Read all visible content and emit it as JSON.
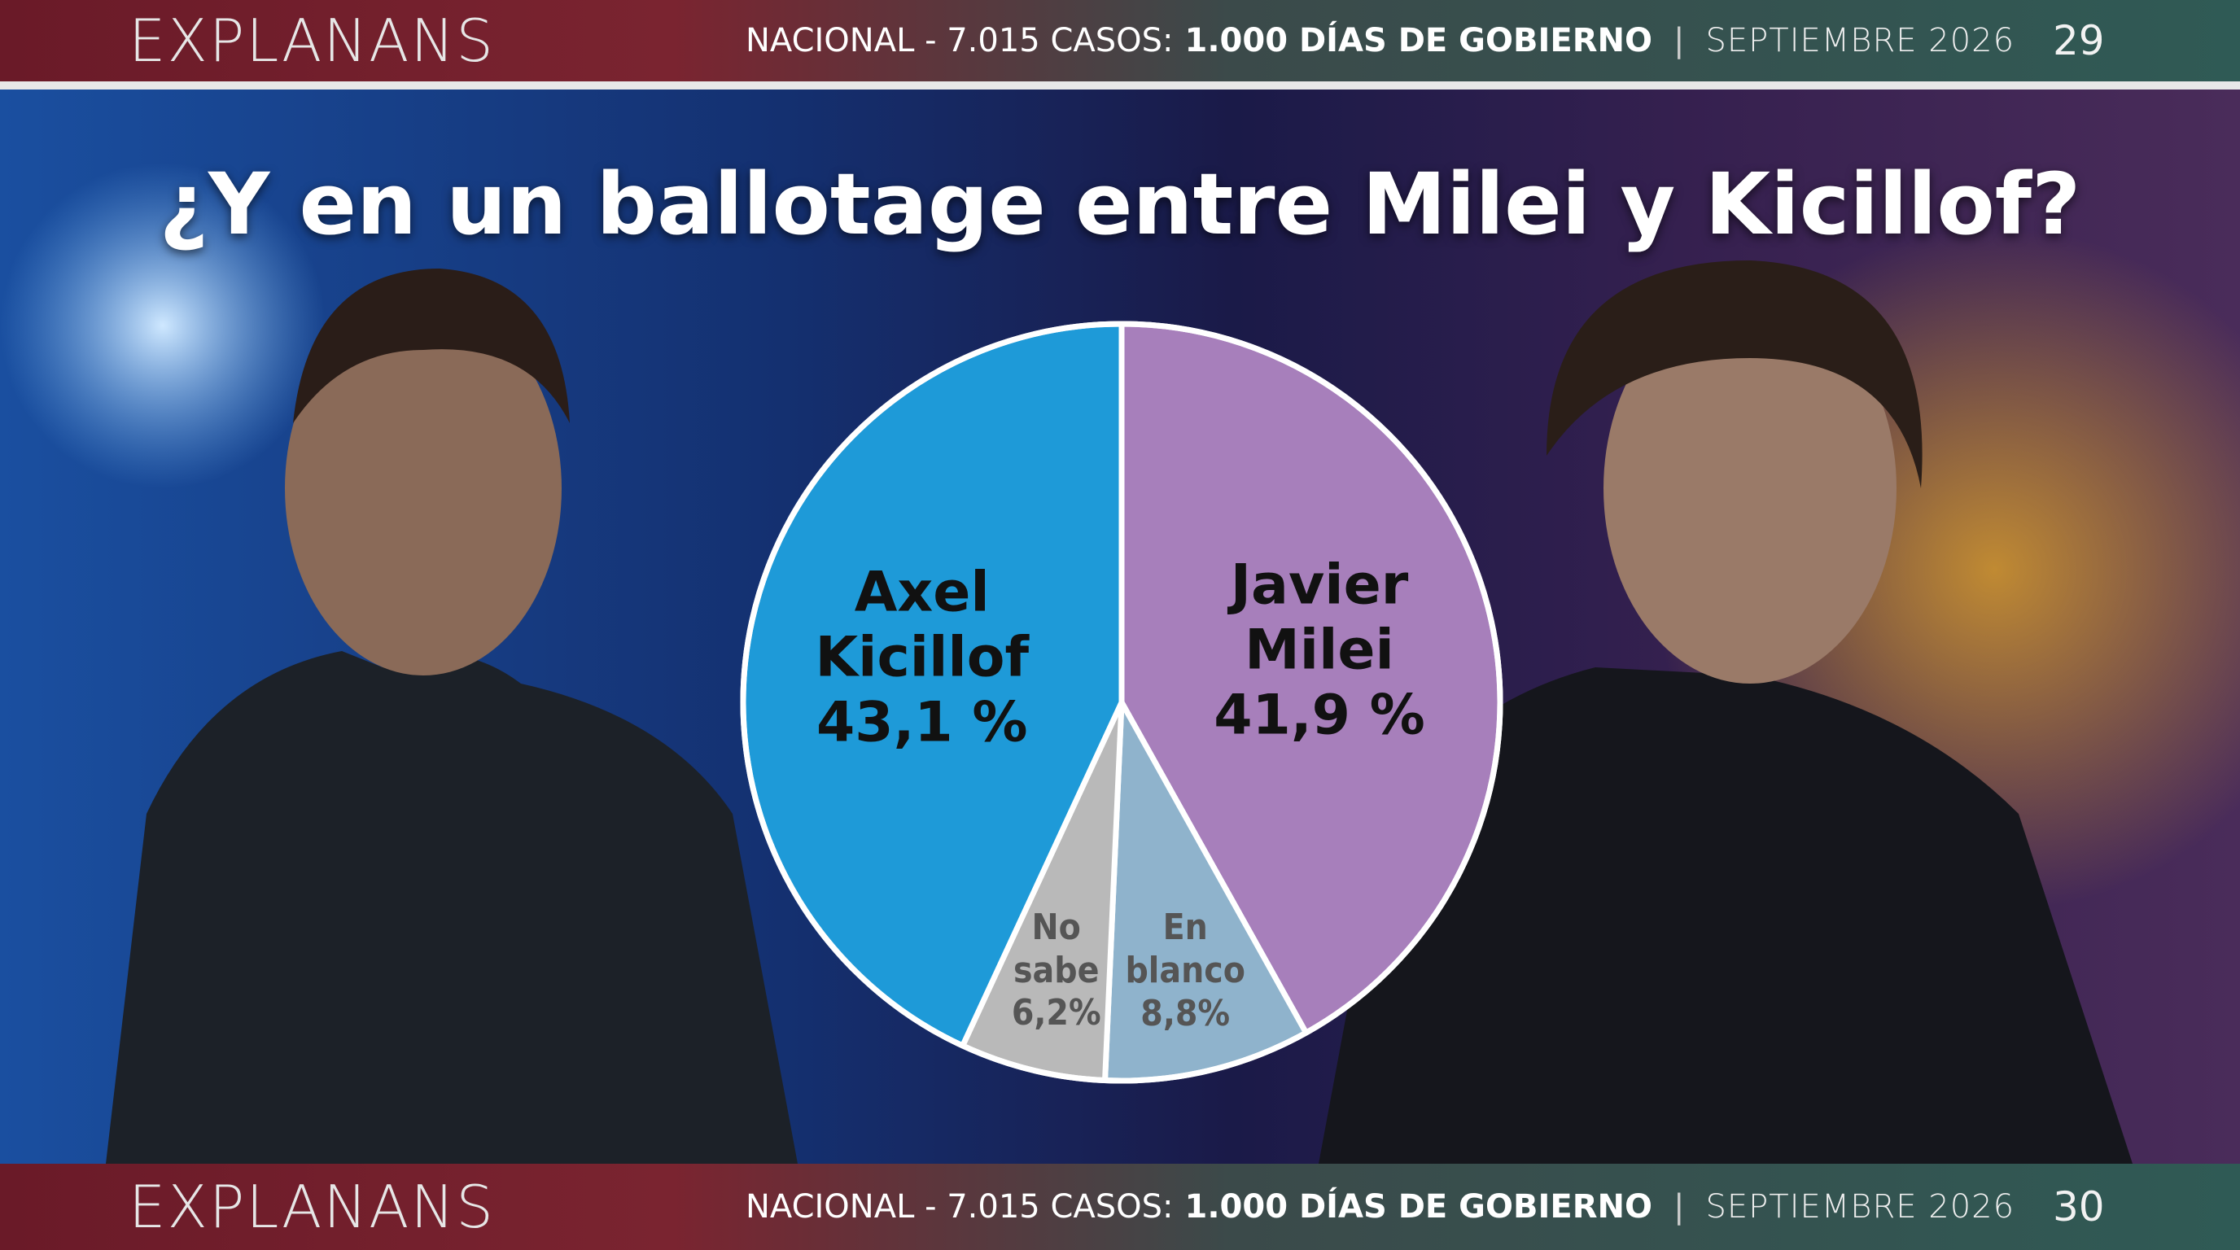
{
  "header": {
    "logo": "EXPLANANS",
    "survey": "NACIONAL - 7.015 CASOS:",
    "topic": "1.000 DÍAS DE GOBIERNO",
    "separator": "|",
    "date": "SEPTIEMBRE 2026",
    "page": "29"
  },
  "footer": {
    "logo": "EXPLANANS",
    "survey": "NACIONAL - 7.015 CASOS:",
    "topic": "1.000 DÍAS DE GOBIERNO",
    "separator": "|",
    "date": "SEPTIEMBRE 2026",
    "page": "30"
  },
  "chart_data": {
    "type": "pie",
    "title": "¿Y en un ballotage entre Milei y Kicillof?",
    "categories": [
      "Javier Milei",
      "En blanco",
      "No sabe",
      "Axel Kicillof"
    ],
    "values": [
      41.9,
      8.8,
      6.2,
      43.1
    ],
    "value_labels": [
      "41,9 %",
      "8,8%",
      "6,2%",
      "43,1 %"
    ],
    "colors": [
      "#a77fbb",
      "#8fb3cc",
      "#b9b9b9",
      "#1e9ad8"
    ]
  }
}
